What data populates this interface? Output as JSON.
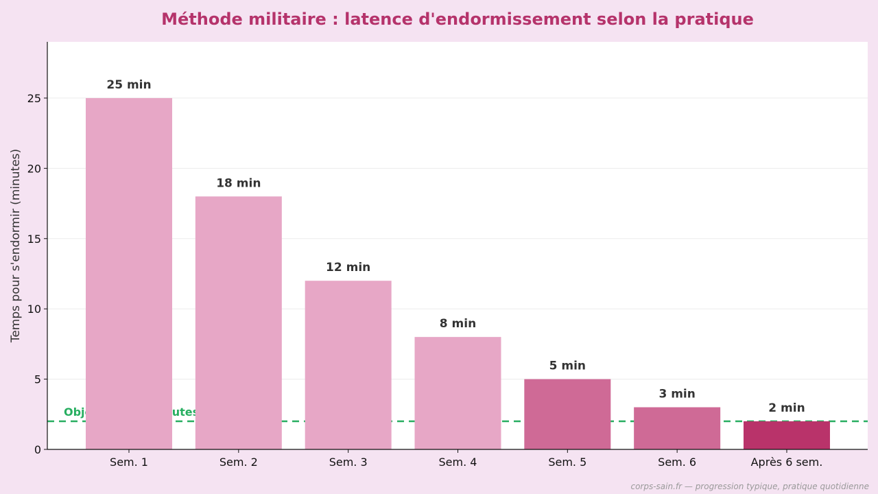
{
  "colors": {
    "background": "#f5e3f2",
    "plot_background": "#ffffff",
    "title": "#b5336b",
    "bar_light": "#e7a7c6",
    "bar_medium": "#cf6a96",
    "bar_dark": "#b9336a",
    "target_line": "#27ae60",
    "value_label": "#333333",
    "axis": "#111111",
    "grid": "#ececec",
    "footer": "#9a9a9a"
  },
  "chart_data": {
    "type": "bar",
    "title": "Méthode militaire : latence d'endormissement selon la pratique",
    "xlabel": "",
    "ylabel": "Temps pour s'endormir (minutes)",
    "categories": [
      "Sem. 1",
      "Sem. 2",
      "Sem. 3",
      "Sem. 4",
      "Sem. 5",
      "Sem. 6",
      "Après 6 sem."
    ],
    "values": [
      25,
      18,
      12,
      8,
      5,
      3,
      2
    ],
    "value_labels": [
      "25 min",
      "18 min",
      "12 min",
      "8 min",
      "5 min",
      "3 min",
      "2 min"
    ],
    "bar_color_keys": [
      "bar_light",
      "bar_light",
      "bar_light",
      "bar_light",
      "bar_medium",
      "bar_medium",
      "bar_dark"
    ],
    "ylim": [
      0,
      29
    ],
    "yticks": [
      0,
      5,
      10,
      15,
      20,
      25
    ],
    "grid": true,
    "target": {
      "value": 2,
      "label": "Objectif : < 2 minutes",
      "style": "dashed"
    },
    "footer": "corps-sain.fr — progression typique, pratique quotidienne"
  }
}
